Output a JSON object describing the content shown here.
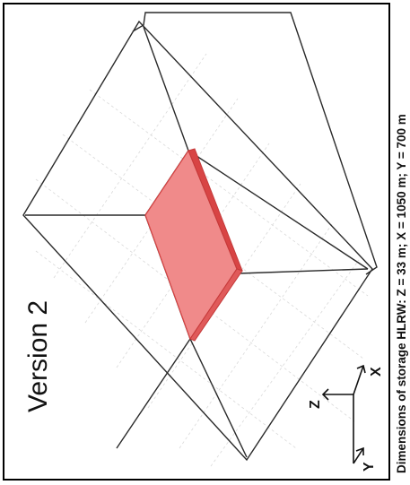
{
  "figure": {
    "version_label": "Version 2",
    "caption": "Dimensions of storage HLRW: Z = 33 m; X = 1050 m; Y = 700 m",
    "axes": {
      "z_label": "Z",
      "x_label": "X",
      "y_label": "Y"
    },
    "colors": {
      "storage_fill": "#f08a8a",
      "storage_edge": "#d84444",
      "grid": "#d9d9d9",
      "outline": "#2a2a2a"
    }
  }
}
